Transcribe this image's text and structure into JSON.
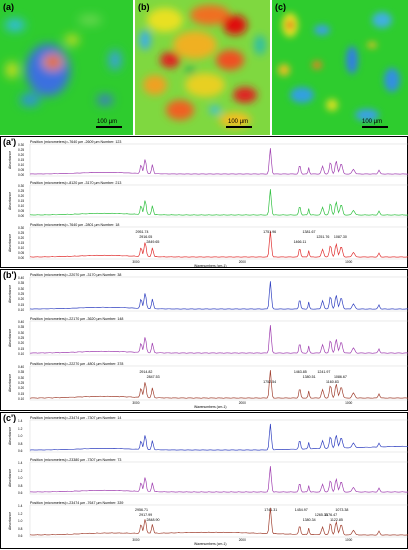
{
  "maps": {
    "a": {
      "label": "(a)",
      "scale": "100 µm"
    },
    "b": {
      "label": "(b)",
      "scale": "100 µm"
    },
    "c": {
      "label": "(c)",
      "scale": "100 µm"
    }
  },
  "groups": {
    "a": {
      "label": "(a')",
      "panels": [
        {
          "title": "Position (micrometers)=-7640 µm -2609 µm  Number: 123",
          "color": "#a040b0",
          "yticks": [
            "0.30",
            "0.25",
            "0.20",
            "0.15",
            "0.10",
            "0.05",
            "0.00"
          ],
          "peaks": []
        },
        {
          "title": "Position (micrometers)=-8120 µm -3170 µm  Number: 213",
          "color": "#30c040",
          "yticks": [
            "0.30",
            "0.25",
            "0.20",
            "0.15",
            "0.10",
            "0.05",
            "0.00"
          ],
          "peaks": []
        },
        {
          "title": "Position (micrometers)=-7640 µm -2801 µm  Number: 18",
          "color": "#e03030",
          "yticks": [
            "0.30",
            "0.25",
            "0.20",
            "0.15",
            "0.10",
            "0.05",
            "0.00"
          ],
          "peaks": [
            "2951.74",
            "2916.05",
            "2849.65",
            "1751.96",
            "1251.76",
            "1466.11",
            "1381.67",
            "1087.30"
          ]
        }
      ],
      "ylabel": "Absorbance",
      "xlabel": "Wavenumbers (cm-1)",
      "xticks": [
        "3000",
        "2000",
        "1000"
      ]
    },
    "b": {
      "label": "(b')",
      "panels": [
        {
          "title": "Position (micrometers)=-22070 µm -3170 µm  Number: 38",
          "color": "#3040c0",
          "yticks": [
            "0.40",
            "0.35",
            "0.30",
            "0.25",
            "0.20",
            "0.15",
            "0.10"
          ],
          "peaks": []
        },
        {
          "title": "Position (micrometers)=-22170 µm -3620 µm  Number: 148",
          "color": "#a040b0",
          "yticks": [
            "0.40",
            "0.35",
            "0.30",
            "0.25",
            "0.20",
            "0.15",
            "0.10"
          ],
          "peaks": []
        },
        {
          "title": "Position (micrometers)=-22270 µm -4801 µm  Number: 378",
          "color": "#a04030",
          "yticks": [
            "0.40",
            "0.35",
            "0.30",
            "0.25",
            "0.20",
            "0.15",
            "0.10"
          ],
          "peaks": [
            "2914.82",
            "2847.53",
            "1752.54",
            "1463.85",
            "1380.51",
            "1160.83",
            "1241.97",
            "1086.67"
          ]
        }
      ],
      "ylabel": "Absorbance",
      "xlabel": "Wavenumbers (cm-1)",
      "xticks": [
        "3000",
        "2000",
        "1000"
      ]
    },
    "c": {
      "label": "(c')",
      "panels": [
        {
          "title": "Position (micrometers)=-23474 µm -7307 µm  Number: 14",
          "color": "#3040c0",
          "yticks": [
            "1.4",
            "1.2",
            "1.0",
            "0.8",
            "0.6"
          ],
          "peaks": []
        },
        {
          "title": "Position (micrometers)=-23380 µm -7307 µm  Number: 73",
          "color": "#a040b0",
          "yticks": [
            "1.4",
            "1.2",
            "1.0",
            "0.8",
            "0.6"
          ],
          "peaks": []
        },
        {
          "title": "Position (micrometers)=-23474 µm -7647 µm  Number: 339",
          "color": "#a04030",
          "yticks": [
            "1.4",
            "1.2",
            "1.0",
            "0.8",
            "0.6"
          ],
          "peaks": [
            "2956.71",
            "2917.99",
            "2848.90",
            "1741.31",
            "1265.35",
            "1380.34",
            "1454.97",
            "1176.47",
            "1122.85",
            "1073.38"
          ]
        }
      ],
      "ylabel": "Absorbance",
      "xlabel": "Wavenumbers (cm-1)",
      "xticks": [
        "3000",
        "2000",
        "1000"
      ]
    }
  }
}
